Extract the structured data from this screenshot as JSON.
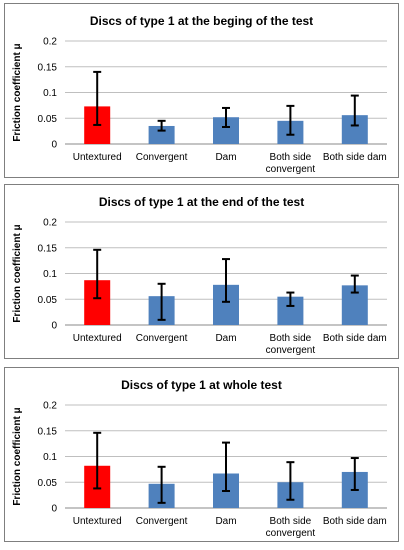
{
  "chart_data": [
    {
      "type": "bar",
      "title": "Discs of type 1 at the beging of the test",
      "ylabel": "Friction coefficient μ",
      "ylim": [
        0,
        0.2
      ],
      "yticks": [
        "0",
        "0.05",
        "0.1",
        "0.15",
        "0.2"
      ],
      "categories": [
        "Untextured",
        "Convergent",
        "Dam",
        "Both side convergent",
        "Both side dam"
      ],
      "category_labels": [
        [
          "Untextured"
        ],
        [
          "Convergent"
        ],
        [
          "Dam"
        ],
        [
          "Both side",
          "convergent"
        ],
        [
          "Both side dam"
        ]
      ],
      "values": [
        0.073,
        0.035,
        0.052,
        0.045,
        0.056
      ],
      "error_low": [
        0.037,
        0.026,
        0.033,
        0.018,
        0.036
      ],
      "error_high": [
        0.14,
        0.045,
        0.07,
        0.074,
        0.094
      ],
      "colors": [
        "#ff0000",
        "#4f81bd",
        "#4f81bd",
        "#4f81bd",
        "#4f81bd"
      ],
      "grid": true
    },
    {
      "type": "bar",
      "title": "Discs of type 1 at the end of the test",
      "ylabel": "Friction coefficient μ",
      "ylim": [
        0,
        0.2
      ],
      "yticks": [
        "0",
        "0.05",
        "0.1",
        "0.15",
        "0.2"
      ],
      "categories": [
        "Untextured",
        "Convergent",
        "Dam",
        "Both side convergent",
        "Both side dam"
      ],
      "category_labels": [
        [
          "Untextured"
        ],
        [
          "Convergent"
        ],
        [
          "Dam"
        ],
        [
          "Both side",
          "convergent"
        ],
        [
          "Both side dam"
        ]
      ],
      "values": [
        0.087,
        0.056,
        0.078,
        0.055,
        0.077
      ],
      "error_low": [
        0.052,
        0.01,
        0.045,
        0.037,
        0.063
      ],
      "error_high": [
        0.146,
        0.08,
        0.128,
        0.063,
        0.096
      ],
      "colors": [
        "#ff0000",
        "#4f81bd",
        "#4f81bd",
        "#4f81bd",
        "#4f81bd"
      ],
      "grid": true
    },
    {
      "type": "bar",
      "title": "Discs of type 1 at whole test",
      "ylabel": "Friction coefficient μ",
      "ylim": [
        0,
        0.2
      ],
      "yticks": [
        "0",
        "0.05",
        "0.1",
        "0.15",
        "0.2"
      ],
      "categories": [
        "Untextured",
        "Convergent",
        "Dam",
        "Both side convergent",
        "Both side dam"
      ],
      "category_labels": [
        [
          "Untextured"
        ],
        [
          "Convergent"
        ],
        [
          "Dam"
        ],
        [
          "Both side",
          "convergent"
        ],
        [
          "Both side dam"
        ]
      ],
      "values": [
        0.082,
        0.047,
        0.067,
        0.05,
        0.07
      ],
      "error_low": [
        0.038,
        0.01,
        0.033,
        0.016,
        0.035
      ],
      "error_high": [
        0.146,
        0.08,
        0.127,
        0.089,
        0.097
      ],
      "colors": [
        "#ff0000",
        "#4f81bd",
        "#4f81bd",
        "#4f81bd",
        "#4f81bd"
      ],
      "grid": true
    }
  ]
}
